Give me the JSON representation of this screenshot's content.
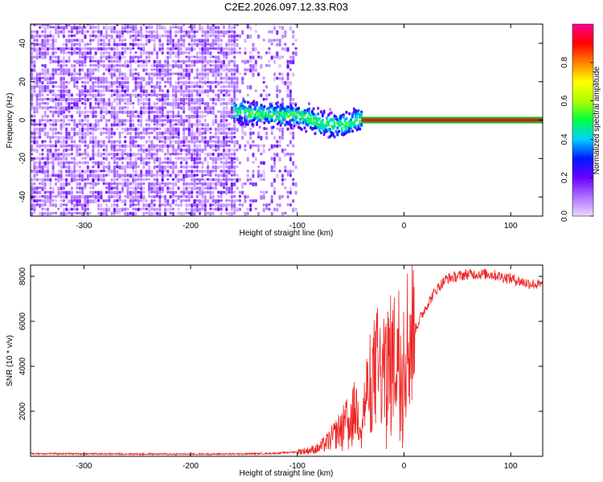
{
  "title": "C2E2.2026.097.12.33.R03",
  "colors": {
    "snr_line": "#ee2222",
    "carrier_line": "#ee1111",
    "carrier_fill": "#22aa22",
    "colorbar": [
      "#e8d8ff",
      "#b070ff",
      "#6a00ff",
      "#0018ff",
      "#00d0ff",
      "#00ff40",
      "#b0ff00",
      "#ffff00",
      "#ff8000",
      "#ff0000",
      "#ff0090"
    ]
  },
  "chart_data": [
    {
      "type": "heatmap",
      "xlabel": "Height of straight line (km)",
      "ylabel": "Frequency (Hz)",
      "xlim": [
        -350,
        130
      ],
      "ylim": [
        -50,
        50
      ],
      "xticks": [
        "-300",
        "-200",
        "-100",
        "0",
        "100"
      ],
      "yticks": [
        "40",
        "20",
        "0",
        "-20",
        "-40"
      ],
      "colorbar": {
        "label": "Normalized spectral amplitude",
        "range": [
          0,
          1
        ],
        "ticks": [
          "0.0",
          "0.2",
          "0.4",
          "0.6",
          "0.8"
        ]
      },
      "features": [
        {
          "name": "",
          "x_range": [
            -350,
            -100
          ],
          "y_range": [
            -50,
            50
          ],
          "amplitude": 0.2
        },
        {
          "name": "",
          "x_range": [
            -160,
            -40
          ],
          "y_center": 0,
          "y_halfwidth": 8,
          "amplitude": 0.4
        },
        {
          "name": "",
          "x_range": [
            -40,
            130
          ],
          "y_center": 0,
          "amplitude": 0.95
        }
      ],
      "carrier_track": [
        [
          -160,
          4
        ],
        [
          -140,
          3
        ],
        [
          -120,
          2
        ],
        [
          -100,
          2
        ],
        [
          -90,
          0
        ],
        [
          -80,
          -2
        ],
        [
          -70,
          -3
        ],
        [
          -60,
          -3
        ],
        [
          -50,
          -2
        ],
        [
          -40,
          0
        ],
        [
          -20,
          0
        ],
        [
          0,
          0
        ],
        [
          130,
          0
        ]
      ]
    },
    {
      "type": "line",
      "xlabel": "Height of straight line (km)",
      "ylabel": "SNR (10 * v/v)",
      "xlim": [
        -350,
        130
      ],
      "ylim": [
        0,
        8500
      ],
      "xticks": [
        "-300",
        "-200",
        "-100",
        "0",
        "100"
      ],
      "yticks": [
        "2000",
        "4000",
        "6000",
        "8000"
      ],
      "series": [
        {
          "values": [
            [
              -350,
              120
            ],
            [
              -300,
              110
            ],
            [
              -250,
              100
            ],
            [
              -200,
              95
            ],
            [
              -150,
              105
            ],
            [
              -120,
              130
            ],
            [
              -100,
              200
            ],
            [
              -90,
              250
            ],
            [
              -80,
              350
            ],
            [
              -70,
              700
            ],
            [
              -60,
              1200
            ],
            [
              -50,
              1700
            ],
            [
              -45,
              2100
            ],
            [
              -40,
              1500
            ],
            [
              -35,
              2800
            ],
            [
              -30,
              3500
            ],
            [
              -25,
              4000
            ],
            [
              -20,
              3500
            ],
            [
              -15,
              4100
            ],
            [
              -10,
              4400
            ],
            [
              -5,
              4700
            ],
            [
              0,
              5000
            ],
            [
              10,
              5600
            ],
            [
              20,
              6600
            ],
            [
              30,
              7400
            ],
            [
              40,
              7900
            ],
            [
              60,
              8100
            ],
            [
              80,
              8100
            ],
            [
              100,
              7900
            ],
            [
              115,
              7700
            ],
            [
              130,
              7600
            ]
          ]
        }
      ]
    }
  ]
}
